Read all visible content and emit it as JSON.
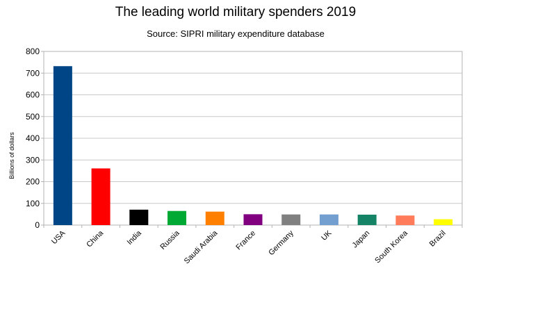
{
  "chart_data": {
    "type": "bar",
    "title": "The leading world military spenders 2019",
    "subtitle": "Source: SIPRI military expenditure database",
    "xlabel": "",
    "ylabel": "Billions of dollars",
    "ylim": [
      0,
      800
    ],
    "yticks": [
      0,
      100,
      200,
      300,
      400,
      500,
      600,
      700,
      800
    ],
    "grid": true,
    "legend": "none",
    "categories": [
      "USA",
      "China",
      "India",
      "Russia",
      "Saudi Arabia",
      "France",
      "Germany",
      "UK",
      "Japan",
      "South Korea",
      "Brazil"
    ],
    "values": [
      732,
      261,
      71,
      65,
      62,
      50,
      49,
      49,
      48,
      44,
      27
    ],
    "colors": [
      "#004586",
      "#ff0000",
      "#000000",
      "#00a933",
      "#ff8000",
      "#800080",
      "#808080",
      "#729fcf",
      "#158466",
      "#ff7b59",
      "#ffff00"
    ]
  }
}
